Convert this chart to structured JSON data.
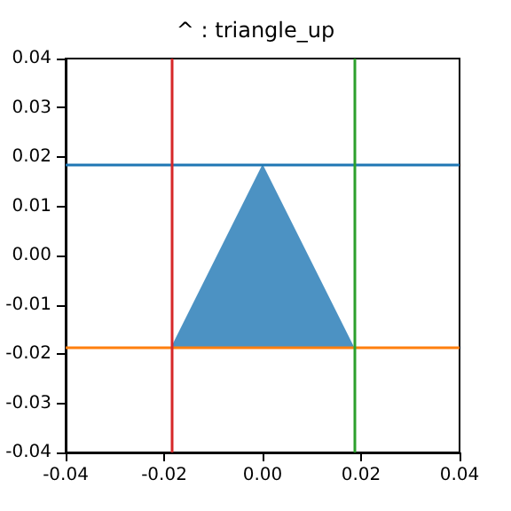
{
  "chart_data": {
    "type": "scatter",
    "title": "^ : triangle_up",
    "marker": "triangle",
    "x": [
      0
    ],
    "series": [
      {
        "color": "#1f77b4",
        "values": [
          0
        ]
      }
    ],
    "xlim": [
      -0.04,
      0.04
    ],
    "ylim": [
      -0.04,
      0.04
    ],
    "xticks": [
      {
        "value": -0.04,
        "label": "-0.04"
      },
      {
        "value": -0.02,
        "label": "-0.02"
      },
      {
        "value": 0,
        "label": "0.00"
      },
      {
        "value": 0.02,
        "label": "0.02"
      },
      {
        "value": 0.04,
        "label": "0.04"
      }
    ],
    "yticks": [
      {
        "value": -0.04,
        "label": "-0.04"
      },
      {
        "value": -0.03,
        "label": "-0.03"
      },
      {
        "value": -0.02,
        "label": "-0.02"
      },
      {
        "value": -0.01,
        "label": "-0.01"
      },
      {
        "value": 0,
        "label": "0.00"
      },
      {
        "value": 0.01,
        "label": "0.01"
      },
      {
        "value": 0.02,
        "label": "0.02"
      },
      {
        "value": 0.03,
        "label": "0.03"
      },
      {
        "value": 0.04,
        "label": "0.04"
      }
    ],
    "ref_lines": [
      {
        "axis": "y",
        "value": 0.0185,
        "color": "#1f77b4"
      },
      {
        "axis": "y",
        "value": -0.0185,
        "color": "#ff7f0e"
      },
      {
        "axis": "x",
        "value": -0.0185,
        "color": "#d62728"
      },
      {
        "axis": "x",
        "value": 0.0185,
        "color": "#2ca02c"
      }
    ]
  }
}
